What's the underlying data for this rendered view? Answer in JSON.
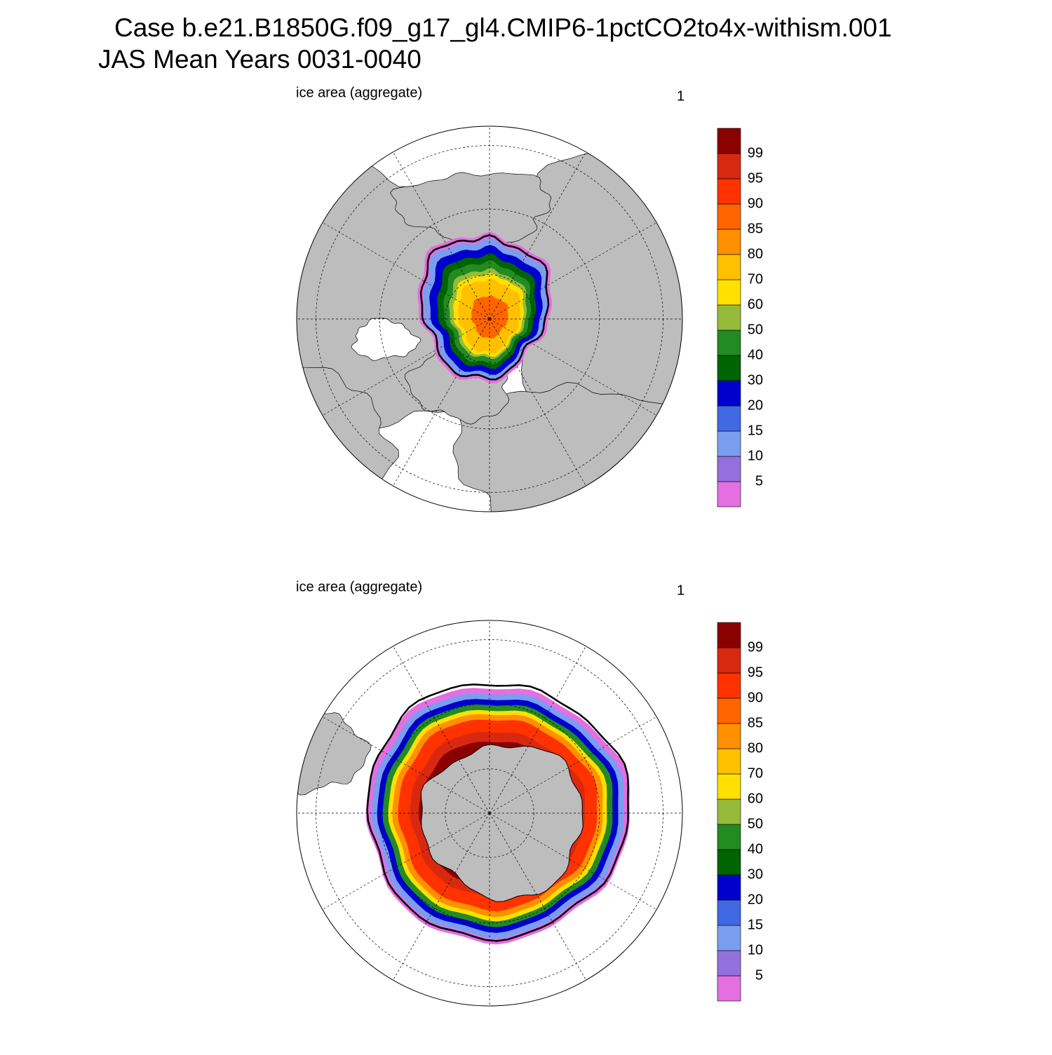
{
  "title": [
    "Case b.e21.B1850G.f09_g17_gl4.CMIP6-1pctCO2to4x-withism.001",
    "JAS Mean   Years 0031-0040"
  ],
  "panels": [
    {
      "left_label": "ice area  (aggregate)",
      "right_label": "1"
    },
    {
      "left_label": "ice area  (aggregate)",
      "right_label": "1"
    }
  ],
  "colorbar": {
    "levels": [
      5,
      10,
      15,
      20,
      30,
      40,
      50,
      60,
      70,
      80,
      85,
      90,
      95,
      99
    ],
    "colors": [
      "#e36fe0",
      "#9370db",
      "#7b9df0",
      "#4169e1",
      "#0000cd",
      "#006400",
      "#228b22",
      "#96bb3a",
      "#ffe000",
      "#ffc000",
      "#ff9000",
      "#ff6400",
      "#ff3200",
      "#d92810",
      "#8b0000"
    ]
  }
}
